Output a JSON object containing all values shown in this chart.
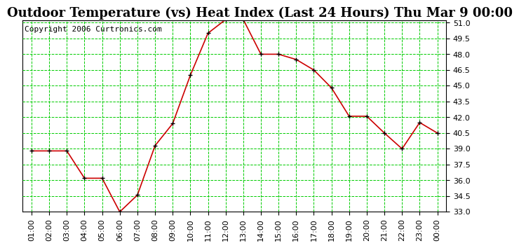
{
  "title": "Outdoor Temperature (vs) Heat Index (Last 24 Hours) Thu Mar 9 00:00",
  "copyright": "Copyright 2006 Curtronics.com",
  "x_labels": [
    "01:00",
    "02:00",
    "03:00",
    "04:00",
    "05:00",
    "06:00",
    "07:00",
    "08:00",
    "09:00",
    "10:00",
    "11:00",
    "12:00",
    "13:00",
    "14:00",
    "15:00",
    "16:00",
    "17:00",
    "18:00",
    "19:00",
    "20:00",
    "21:00",
    "22:00",
    "23:00",
    "00:00"
  ],
  "y_values": [
    38.8,
    38.8,
    38.8,
    36.2,
    36.2,
    33.0,
    34.6,
    39.3,
    41.4,
    46.0,
    50.0,
    51.3,
    51.3,
    48.0,
    48.0,
    47.5,
    46.5,
    44.8,
    42.1,
    42.1,
    40.5,
    39.0,
    41.5,
    40.5
  ],
  "ylim_min": 33.0,
  "ylim_max": 51.0,
  "ytick_step": 1.5,
  "line_color": "#cc0000",
  "marker_color": "#000000",
  "grid_color": "#00cc00",
  "background_color": "#ffffff",
  "title_fontsize": 13,
  "tick_fontsize": 8,
  "copyright_fontsize": 8
}
